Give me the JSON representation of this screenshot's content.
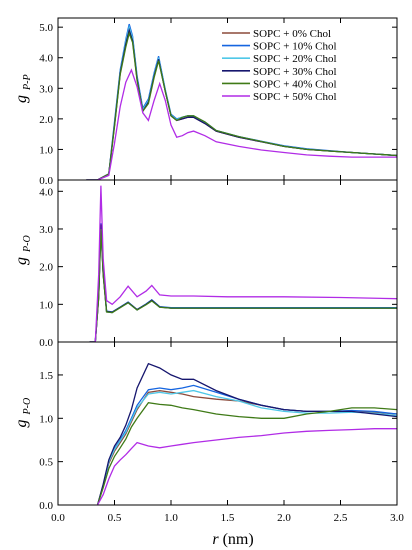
{
  "chart_data": {
    "type": "line",
    "figure": "radial distribution functions, three stacked panels with shared x axis",
    "xlabel_symbol": "r",
    "xlabel_unit": "(nm)",
    "x_ticks": [
      "0.0",
      "0.5",
      "1.0",
      "1.5",
      "2.0",
      "2.5",
      "3.0"
    ],
    "xlim": [
      0,
      3
    ],
    "legend": {
      "placement": "top-right of top panel",
      "entries": [
        "SOPC + 0% Chol",
        "SOPC + 10% Chol",
        "SOPC + 20% Chol",
        "SOPC + 30% Chol",
        "SOPC + 40% Chol",
        "SOPC + 50% Chol"
      ]
    },
    "colors": [
      "#8B4A3A",
      "#1565E0",
      "#4FC8E8",
      "#16166E",
      "#3F7A17",
      "#B12CE6"
    ],
    "panels": [
      {
        "ylabel": "g",
        "ylabel_sub": "P-P",
        "ylim": [
          0,
          5.3
        ],
        "y_ticks": [
          "0.0",
          "1.0",
          "2.0",
          "3.0",
          "4.0",
          "5.0"
        ],
        "y_tick_values": [
          0,
          1,
          2,
          3,
          4,
          5
        ],
        "series": [
          {
            "x": [
              0.25,
              0.35,
              0.45,
              0.5,
              0.55,
              0.6,
              0.63,
              0.66,
              0.7,
              0.75,
              0.8,
              0.85,
              0.89,
              0.95,
              1.0,
              1.05,
              1.1,
              1.15,
              1.2,
              1.3,
              1.4,
              1.6,
              1.8,
              2.0,
              2.2,
              2.4,
              2.6,
              2.8,
              3.0
            ],
            "y": [
              0,
              0,
              0.2,
              1.8,
              3.5,
              4.5,
              4.95,
              4.6,
              3.3,
              2.3,
              2.6,
              3.4,
              3.95,
              2.9,
              2.1,
              1.95,
              2.0,
              2.05,
              2.05,
              1.85,
              1.6,
              1.4,
              1.25,
              1.1,
              1.0,
              0.95,
              0.9,
              0.85,
              0.8
            ]
          },
          {
            "x": [
              0.25,
              0.35,
              0.45,
              0.5,
              0.55,
              0.6,
              0.63,
              0.66,
              0.7,
              0.75,
              0.8,
              0.85,
              0.89,
              0.95,
              1.0,
              1.05,
              1.1,
              1.15,
              1.2,
              1.3,
              1.4,
              1.6,
              1.8,
              2.0,
              2.2,
              2.4,
              2.6,
              2.8,
              3.0
            ],
            "y": [
              0,
              0,
              0.2,
              1.9,
              3.6,
              4.6,
              5.1,
              4.7,
              3.4,
              2.35,
              2.65,
              3.5,
              4.05,
              2.95,
              2.15,
              2.0,
              2.05,
              2.1,
              2.08,
              1.9,
              1.62,
              1.42,
              1.27,
              1.12,
              1.02,
              0.96,
              0.9,
              0.85,
              0.8
            ]
          },
          {
            "x": [
              0.25,
              0.35,
              0.45,
              0.5,
              0.55,
              0.6,
              0.63,
              0.66,
              0.7,
              0.75,
              0.8,
              0.85,
              0.89,
              0.95,
              1.0,
              1.05,
              1.1,
              1.15,
              1.2,
              1.3,
              1.4,
              1.6,
              1.8,
              2.0,
              2.2,
              2.4,
              2.6,
              2.8,
              3.0
            ],
            "y": [
              0,
              0,
              0.2,
              1.85,
              3.55,
              4.55,
              5.0,
              4.65,
              3.35,
              2.3,
              2.6,
              3.45,
              4.0,
              2.95,
              2.12,
              1.98,
              2.05,
              2.1,
              2.1,
              1.88,
              1.62,
              1.42,
              1.26,
              1.11,
              1.01,
              0.95,
              0.9,
              0.85,
              0.8
            ]
          },
          {
            "x": [
              0.25,
              0.35,
              0.45,
              0.5,
              0.55,
              0.6,
              0.63,
              0.66,
              0.7,
              0.75,
              0.8,
              0.85,
              0.89,
              0.95,
              1.0,
              1.05,
              1.1,
              1.15,
              1.2,
              1.3,
              1.4,
              1.6,
              1.8,
              2.0,
              2.2,
              2.4,
              2.6,
              2.8,
              3.0
            ],
            "y": [
              0,
              0,
              0.2,
              1.8,
              3.5,
              4.45,
              4.9,
              4.55,
              3.3,
              2.25,
              2.55,
              3.4,
              3.95,
              2.9,
              2.1,
              1.95,
              2.0,
              2.05,
              2.05,
              1.85,
              1.6,
              1.4,
              1.25,
              1.1,
              1.0,
              0.95,
              0.9,
              0.85,
              0.8
            ]
          },
          {
            "x": [
              0.25,
              0.35,
              0.45,
              0.5,
              0.55,
              0.6,
              0.63,
              0.66,
              0.7,
              0.75,
              0.8,
              0.85,
              0.89,
              0.95,
              1.0,
              1.05,
              1.1,
              1.15,
              1.2,
              1.3,
              1.4,
              1.6,
              1.8,
              2.0,
              2.2,
              2.4,
              2.6,
              2.8,
              3.0
            ],
            "y": [
              0,
              0,
              0.2,
              1.75,
              3.45,
              4.35,
              4.8,
              4.5,
              3.25,
              2.25,
              2.5,
              3.35,
              3.9,
              2.9,
              2.1,
              1.95,
              2.05,
              2.1,
              2.1,
              1.9,
              1.62,
              1.42,
              1.26,
              1.1,
              1.0,
              0.95,
              0.9,
              0.85,
              0.8
            ]
          },
          {
            "x": [
              0.25,
              0.35,
              0.45,
              0.5,
              0.55,
              0.6,
              0.65,
              0.7,
              0.75,
              0.8,
              0.85,
              0.9,
              0.95,
              1.0,
              1.05,
              1.1,
              1.15,
              1.2,
              1.3,
              1.4,
              1.6,
              1.8,
              2.0,
              2.2,
              2.4,
              2.6,
              2.8,
              3.0
            ],
            "y": [
              0,
              0,
              0.15,
              1.2,
              2.4,
              3.2,
              3.6,
              3.05,
              2.2,
              1.95,
              2.6,
              3.15,
              2.6,
              1.8,
              1.4,
              1.45,
              1.55,
              1.6,
              1.45,
              1.25,
              1.1,
              0.98,
              0.9,
              0.82,
              0.78,
              0.75,
              0.75,
              0.75
            ]
          }
        ]
      },
      {
        "ylabel": "g",
        "ylabel_sub": "P-O",
        "ylim": [
          0,
          4.3
        ],
        "y_ticks": [
          "0.0",
          "1.0",
          "2.0",
          "3.0",
          "4.0"
        ],
        "y_tick_values": [
          0,
          1,
          2,
          3,
          4
        ],
        "series": [
          {
            "x": [
              0.28,
              0.33,
              0.36,
              0.38,
              0.4,
              0.43,
              0.48,
              0.55,
              0.62,
              0.7,
              0.78,
              0.83,
              0.9,
              1.0,
              1.2,
              1.5,
              2.0,
              2.5,
              3.0
            ],
            "y": [
              0,
              0,
              1.2,
              3.1,
              1.8,
              0.8,
              0.78,
              0.92,
              1.05,
              0.85,
              1.0,
              1.1,
              0.93,
              0.9,
              0.9,
              0.9,
              0.9,
              0.9,
              0.9
            ]
          },
          {
            "x": [
              0.28,
              0.33,
              0.36,
              0.38,
              0.4,
              0.43,
              0.48,
              0.55,
              0.62,
              0.7,
              0.78,
              0.83,
              0.9,
              1.0,
              1.2,
              1.5,
              2.0,
              2.5,
              3.0
            ],
            "y": [
              0,
              0,
              1.25,
              3.15,
              1.85,
              0.82,
              0.8,
              0.93,
              1.06,
              0.86,
              1.01,
              1.12,
              0.94,
              0.91,
              0.91,
              0.91,
              0.91,
              0.91,
              0.91
            ]
          },
          {
            "x": [
              0.28,
              0.33,
              0.36,
              0.38,
              0.4,
              0.43,
              0.48,
              0.55,
              0.62,
              0.7,
              0.78,
              0.83,
              0.9,
              1.0,
              1.2,
              1.5,
              2.0,
              2.5,
              3.0
            ],
            "y": [
              0,
              0,
              1.2,
              3.05,
              1.8,
              0.8,
              0.78,
              0.92,
              1.04,
              0.85,
              1.0,
              1.1,
              0.93,
              0.9,
              0.9,
              0.9,
              0.9,
              0.9,
              0.9
            ]
          },
          {
            "x": [
              0.28,
              0.33,
              0.36,
              0.38,
              0.4,
              0.43,
              0.48,
              0.55,
              0.62,
              0.7,
              0.78,
              0.83,
              0.9,
              1.0,
              1.2,
              1.5,
              2.0,
              2.5,
              3.0
            ],
            "y": [
              0,
              0,
              1.22,
              3.12,
              1.82,
              0.81,
              0.79,
              0.92,
              1.05,
              0.86,
              1.0,
              1.11,
              0.93,
              0.9,
              0.9,
              0.9,
              0.9,
              0.9,
              0.9
            ]
          },
          {
            "x": [
              0.28,
              0.33,
              0.36,
              0.38,
              0.4,
              0.43,
              0.48,
              0.55,
              0.62,
              0.7,
              0.78,
              0.83,
              0.9,
              1.0,
              1.2,
              1.5,
              2.0,
              2.5,
              3.0
            ],
            "y": [
              0,
              0,
              1.18,
              3.0,
              1.78,
              0.8,
              0.78,
              0.91,
              1.04,
              0.85,
              0.99,
              1.09,
              0.92,
              0.9,
              0.9,
              0.9,
              0.9,
              0.9,
              0.9
            ]
          },
          {
            "x": [
              0.28,
              0.33,
              0.36,
              0.38,
              0.4,
              0.43,
              0.48,
              0.55,
              0.62,
              0.7,
              0.78,
              0.83,
              0.9,
              1.0,
              1.2,
              1.5,
              2.0,
              2.5,
              3.0
            ],
            "y": [
              0,
              0,
              1.8,
              4.15,
              2.2,
              1.1,
              1.0,
              1.2,
              1.48,
              1.2,
              1.35,
              1.5,
              1.25,
              1.22,
              1.22,
              1.2,
              1.2,
              1.18,
              1.15
            ]
          }
        ]
      },
      {
        "ylabel": "g",
        "ylabel_sub": "P-O",
        "ylim": [
          0,
          1.88
        ],
        "y_ticks": [
          "0.0",
          "0.5",
          "1.0",
          "1.5"
        ],
        "y_tick_values": [
          0,
          0.5,
          1.0,
          1.5
        ],
        "series": [
          {
            "x": [
              0.35,
              0.4,
              0.45,
              0.5,
              0.55,
              0.6,
              0.65,
              0.7,
              0.8,
              0.9,
              1.0,
              1.1,
              1.2,
              1.4,
              1.6,
              1.8,
              2.0,
              2.2,
              2.4,
              2.6,
              2.8,
              3.0
            ],
            "y": [
              0,
              0.22,
              0.48,
              0.62,
              0.72,
              0.82,
              0.96,
              1.1,
              1.3,
              1.32,
              1.3,
              1.28,
              1.25,
              1.22,
              1.2,
              1.15,
              1.1,
              1.08,
              1.08,
              1.07,
              1.07,
              1.05
            ]
          },
          {
            "x": [
              0.35,
              0.4,
              0.45,
              0.5,
              0.55,
              0.6,
              0.65,
              0.7,
              0.8,
              0.9,
              1.0,
              1.1,
              1.2,
              1.4,
              1.6,
              1.8,
              2.0,
              2.2,
              2.4,
              2.6,
              2.8,
              3.0
            ],
            "y": [
              0,
              0.22,
              0.5,
              0.65,
              0.75,
              0.86,
              1.0,
              1.15,
              1.33,
              1.35,
              1.33,
              1.35,
              1.38,
              1.3,
              1.22,
              1.15,
              1.1,
              1.08,
              1.08,
              1.09,
              1.08,
              1.05
            ]
          },
          {
            "x": [
              0.35,
              0.4,
              0.45,
              0.5,
              0.55,
              0.6,
              0.65,
              0.7,
              0.8,
              0.9,
              1.0,
              1.1,
              1.2,
              1.4,
              1.6,
              1.8,
              2.0,
              2.2,
              2.4,
              2.6,
              2.8,
              3.0
            ],
            "y": [
              0,
              0.22,
              0.5,
              0.64,
              0.74,
              0.84,
              0.98,
              1.12,
              1.28,
              1.3,
              1.28,
              1.3,
              1.32,
              1.25,
              1.2,
              1.12,
              1.08,
              1.06,
              1.06,
              1.07,
              1.06,
              1.03
            ]
          },
          {
            "x": [
              0.35,
              0.4,
              0.45,
              0.5,
              0.55,
              0.6,
              0.65,
              0.7,
              0.8,
              0.9,
              1.0,
              1.1,
              1.2,
              1.4,
              1.6,
              1.8,
              2.0,
              2.2,
              2.4,
              2.6,
              2.8,
              3.0
            ],
            "y": [
              0,
              0.24,
              0.52,
              0.68,
              0.78,
              0.92,
              1.1,
              1.35,
              1.63,
              1.58,
              1.5,
              1.45,
              1.45,
              1.32,
              1.22,
              1.15,
              1.1,
              1.08,
              1.08,
              1.08,
              1.05,
              1.02
            ]
          },
          {
            "x": [
              0.35,
              0.4,
              0.45,
              0.5,
              0.55,
              0.6,
              0.65,
              0.7,
              0.8,
              0.9,
              1.0,
              1.1,
              1.2,
              1.4,
              1.6,
              1.8,
              2.0,
              2.2,
              2.4,
              2.6,
              2.8,
              3.0
            ],
            "y": [
              0,
              0.2,
              0.42,
              0.56,
              0.66,
              0.76,
              0.9,
              1.0,
              1.18,
              1.16,
              1.15,
              1.12,
              1.1,
              1.05,
              1.02,
              1.0,
              1.0,
              1.05,
              1.08,
              1.12,
              1.12,
              1.1
            ]
          },
          {
            "x": [
              0.35,
              0.4,
              0.45,
              0.5,
              0.55,
              0.6,
              0.65,
              0.7,
              0.8,
              0.9,
              1.0,
              1.1,
              1.2,
              1.4,
              1.6,
              1.8,
              2.0,
              2.2,
              2.4,
              2.6,
              2.8,
              3.0
            ],
            "y": [
              0,
              0.12,
              0.3,
              0.45,
              0.52,
              0.58,
              0.65,
              0.72,
              0.68,
              0.66,
              0.68,
              0.7,
              0.72,
              0.75,
              0.78,
              0.8,
              0.83,
              0.85,
              0.86,
              0.87,
              0.88,
              0.88
            ]
          }
        ]
      }
    ]
  }
}
